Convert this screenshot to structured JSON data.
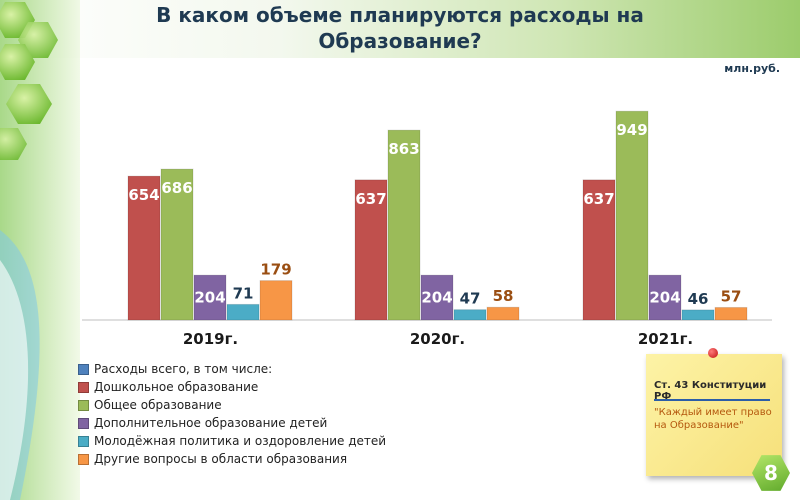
{
  "title": "В каком объеме планируются расходы на Образование?",
  "unit": "млн.руб.",
  "chart_data": {
    "type": "bar",
    "categories": [
      "2019г.",
      "2020г.",
      "2021г."
    ],
    "series": [
      {
        "name": "Расходы всего, в том числе:",
        "color": "#4f81bd",
        "values": [
          null,
          null,
          null
        ]
      },
      {
        "name": "Дошкольное образование",
        "color": "#c0504d",
        "values": [
          654,
          637,
          637
        ]
      },
      {
        "name": "Общее образование",
        "color": "#9bbb59",
        "values": [
          686,
          863,
          949
        ]
      },
      {
        "name": "Дополнительное образование детей",
        "color": "#8064a2",
        "values": [
          204,
          204,
          204
        ]
      },
      {
        "name": "Молодёжная политика и оздоровление детей",
        "color": "#4bacc6",
        "values": [
          71,
          47,
          46
        ]
      },
      {
        "name": "Другие вопросы в области образования",
        "color": "#f79646",
        "values": [
          179,
          58,
          57
        ]
      }
    ],
    "ylim": [
      0,
      1000
    ],
    "grid": false,
    "legend_position": "bottom-left"
  },
  "note": {
    "heading": "Ст. 43 Конституции РФ",
    "quote": "\"Каждый имеет право на Образование\""
  },
  "page_number": "8",
  "colors": {
    "title": "#1f3a52",
    "accent_green": "#9bbb59"
  }
}
